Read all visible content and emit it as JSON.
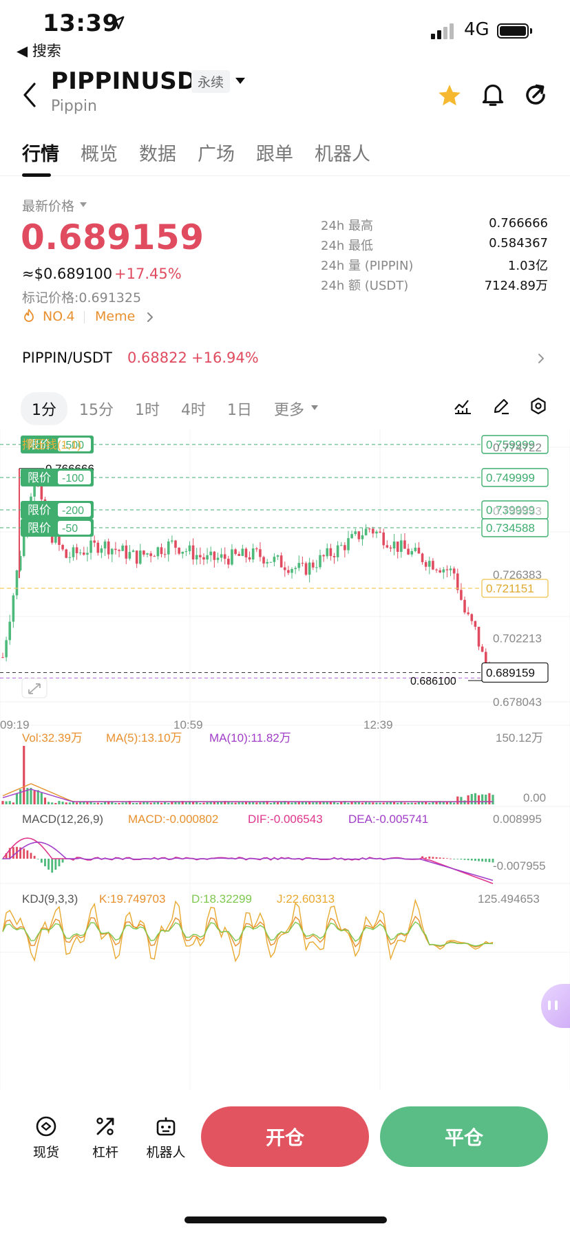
{
  "status": {
    "time": "13:39",
    "back_label": "◀ 搜索",
    "network": "4G"
  },
  "header": {
    "symbol": "PIPPINUSDT",
    "badge": "永续",
    "subname": "Pippin"
  },
  "tabs": [
    "行情",
    "概览",
    "数据",
    "广场",
    "跟单",
    "机器人"
  ],
  "price": {
    "label": "最新价格",
    "last": "0.689159",
    "usd": "≈$0.689100",
    "change_pct": "+17.45%",
    "mark": "标记价格:0.691325",
    "rank": "NO.4",
    "tag": "Meme"
  },
  "stats": [
    {
      "k": "24h  最高",
      "v": "0.766666"
    },
    {
      "k": "24h  最低",
      "v": "0.584367"
    },
    {
      "k": "24h  量 (PIPPIN)",
      "v": "1.03亿"
    },
    {
      "k": "24h  额 (USDT)",
      "v": "7124.89万"
    }
  ],
  "spot_pair": {
    "name": "PIPPIN/USDT",
    "price": "0.68822",
    "pct": "+16.94%"
  },
  "intervals": [
    "1分",
    "15分",
    "1时",
    "4时",
    "1日",
    "更多"
  ],
  "chart": {
    "indicator_label": "撑压线(1,1)",
    "y_ticks": [
      "0.774722",
      "0.726383",
      "0.702213",
      "0.678043"
    ],
    "high_label": "0.766666",
    "low_label": "0.686100",
    "current_price": "0.689159",
    "support_price": "0.721151",
    "hidden_tick": "0.750553",
    "limit_word": "限价",
    "orders": [
      {
        "offset": "-500",
        "price": "0.759999"
      },
      {
        "offset": "-100",
        "price": "0.749999"
      },
      {
        "offset": "-200",
        "price": "0.739999"
      },
      {
        "offset": "-50",
        "price": "0.734588"
      }
    ],
    "x_ticks": [
      "09:19",
      "10:59",
      "12:39"
    ],
    "vol": {
      "label": "Vol:32.39万",
      "ma5": "MA(5):13.10万",
      "ma10": "MA(10):11.82万",
      "max": "150.12万",
      "min": "0.00"
    },
    "macd": {
      "label": "MACD(12,26,9)",
      "macd": "MACD:-0.000802",
      "dif": "DIF:-0.006543",
      "dea": "DEA:-0.005741",
      "max": "0.008995",
      "min": "-0.007955"
    },
    "kdj": {
      "label": "KDJ(9,3,3)",
      "k": "K:19.749703",
      "d": "D:18.32299",
      "j": "J:22.60313",
      "max": "125.494653"
    },
    "colors": {
      "up": "#4db97b",
      "down": "#e04b5f",
      "dif": "#e0358c",
      "dea": "#a03cc8",
      "k": "#e8a92e",
      "d": "#7ec850"
    }
  },
  "bottom": {
    "spot": "现货",
    "leverage": "杠杆",
    "bot": "机器人",
    "open": "开仓",
    "close": "平仓"
  }
}
